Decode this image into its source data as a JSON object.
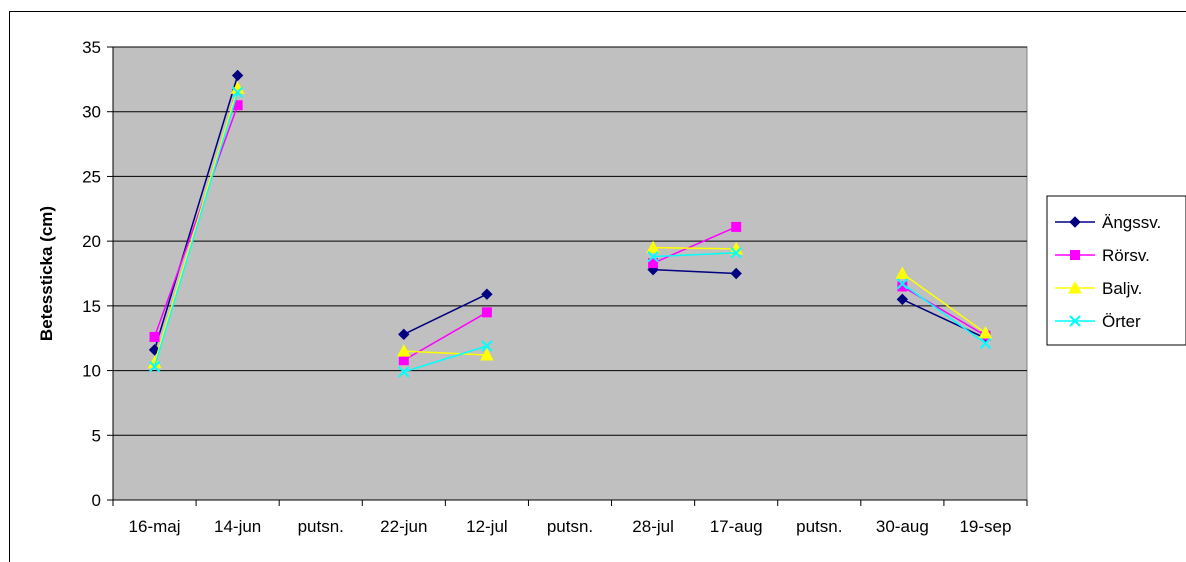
{
  "chart_data": {
    "type": "line",
    "title": "",
    "xlabel": "",
    "ylabel": "Betessticka (cm)",
    "ylim": [
      0,
      35
    ],
    "yticks": [
      0,
      5,
      10,
      15,
      20,
      25,
      30,
      35
    ],
    "grid": true,
    "legend_position": "right",
    "categories": [
      "16-maj",
      "14-jun",
      "putsn.",
      "22-jun",
      "12-jul",
      "putsn.",
      "28-jul",
      "17-aug",
      "putsn.",
      "30-aug",
      "19-sep"
    ],
    "series": [
      {
        "name": "Ängssv.",
        "color": "#000080",
        "marker": "diamond",
        "values": [
          11.6,
          32.8,
          null,
          12.8,
          15.9,
          null,
          17.8,
          17.5,
          null,
          15.5,
          12.5
        ]
      },
      {
        "name": "Rörsv.",
        "color": "#ff00ff",
        "marker": "square",
        "values": [
          12.6,
          30.5,
          null,
          10.8,
          14.5,
          null,
          18.3,
          21.1,
          null,
          16.5,
          12.7
        ]
      },
      {
        "name": "Baljv.",
        "color": "#ffff00",
        "marker": "triangle",
        "values": [
          10.6,
          31.8,
          null,
          11.5,
          11.2,
          null,
          19.5,
          19.4,
          null,
          17.5,
          12.9
        ]
      },
      {
        "name": "Örter",
        "color": "#00ffff",
        "marker": "x",
        "values": [
          10.3,
          31.5,
          null,
          9.9,
          11.9,
          null,
          18.8,
          19.1,
          null,
          16.7,
          12.1
        ]
      }
    ]
  }
}
